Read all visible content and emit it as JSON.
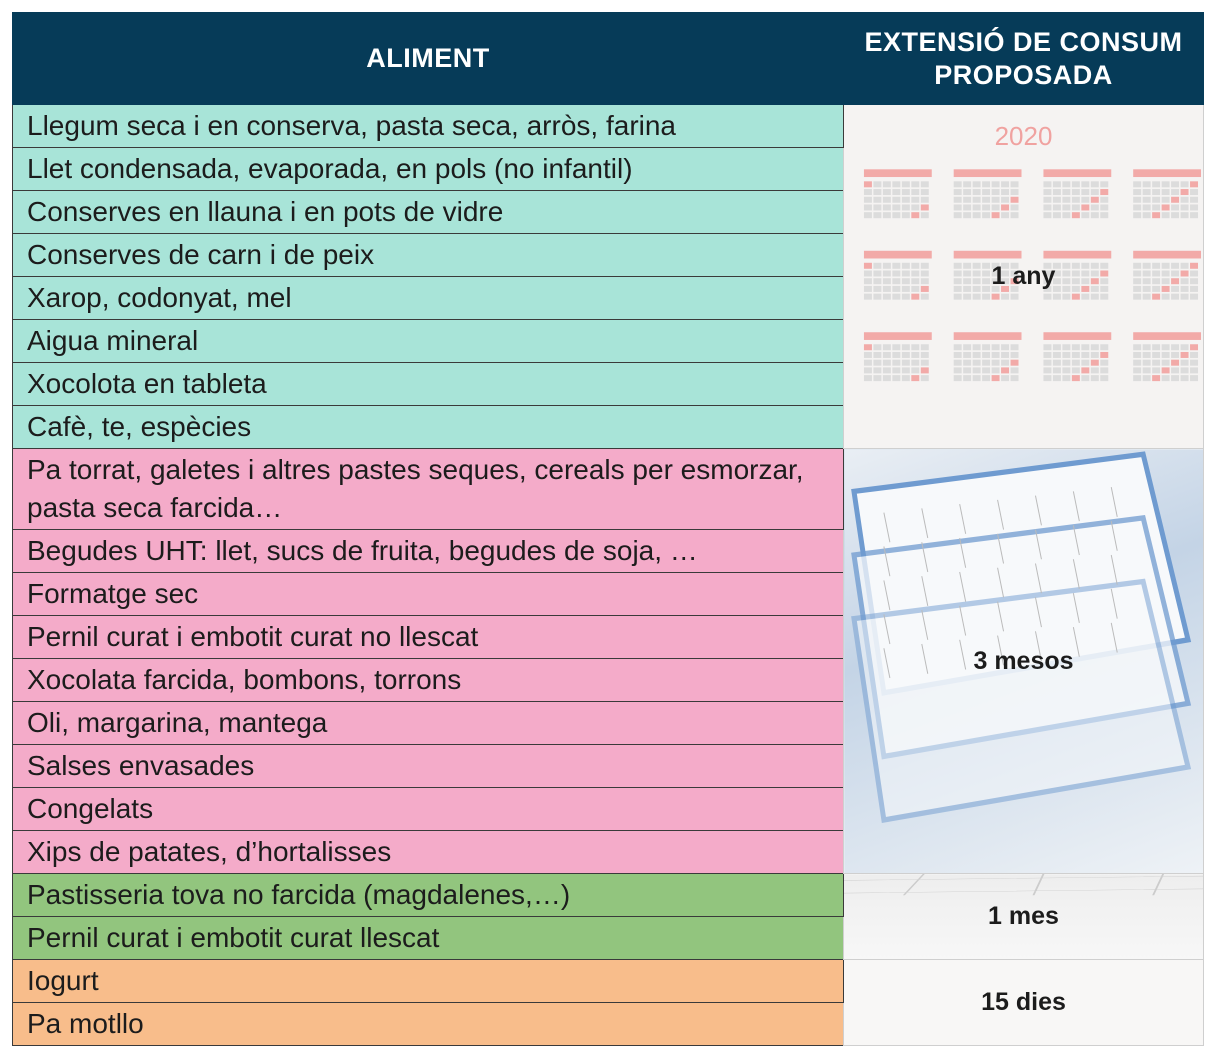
{
  "table": {
    "headers": [
      "ALIMENT",
      "EXTENSIÓ DE CONSUM PROPOSADA"
    ],
    "groups": [
      {
        "duration": "1 any",
        "image_text": "2020",
        "items": [
          "Llegum seca i en conserva, pasta seca, arròs, farina",
          "Llet condensada, evaporada, en pols (no infantil)",
          "Conserves en llauna i en pots de vidre",
          "Conserves de carn i de peix",
          "Xarop, codonyat, mel",
          "Aigua mineral",
          "Xocolota en tableta",
          "Cafè, te, espècies"
        ]
      },
      {
        "duration": "3 mesos",
        "items": [
          "Pa torrat, galetes i altres pastes seques, cereals per esmorzar, pasta seca farcida…",
          "Begudes UHT: llet, sucs de fruita, begudes de soja, …",
          "Formatge sec",
          "Pernil curat i embotit curat no llescat",
          "Xocolata farcida, bombons, torrons",
          "Oli, margarina, mantega",
          "Salses envasades",
          "Congelats",
          "Xips de patates, d’hortalisses"
        ]
      },
      {
        "duration": "1 mes",
        "items": [
          "Pastisseria tova no farcida (magdalenes,…)",
          "Pernil curat i embotit curat llescat"
        ]
      },
      {
        "duration": "15 dies",
        "items": [
          "Iogurt",
          "Pa motllo"
        ]
      }
    ]
  }
}
